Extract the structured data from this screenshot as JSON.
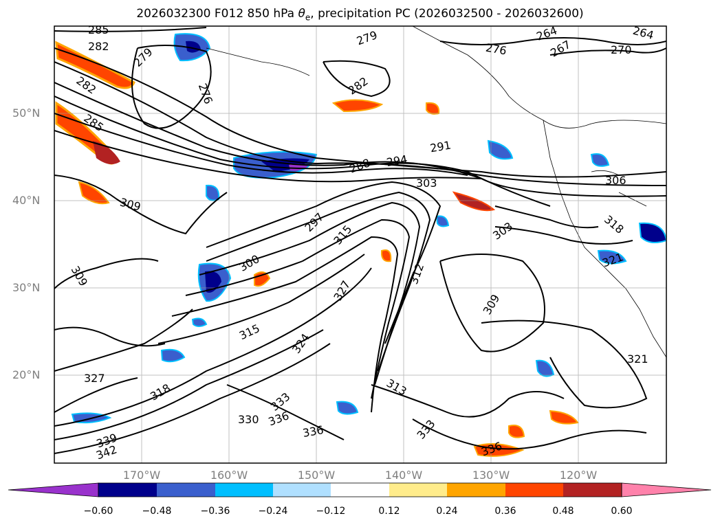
{
  "map": {
    "title_parts": {
      "prefix": "2026032300 F012 850 hPa ",
      "theta": "θ",
      "sub": "e",
      "suffix": ", precipitation PC (2026032500 - 2026032600)"
    },
    "lat_labels": [
      "50°N",
      "40°N",
      "30°N",
      "20°N"
    ],
    "lon_labels": [
      "170°W",
      "160°W",
      "150°W",
      "140°W",
      "130°W",
      "120°W"
    ],
    "contour_labels": [
      "285",
      "282",
      "279",
      "276",
      "282",
      "285",
      "309",
      "279",
      "282",
      "291",
      "288",
      "294",
      "303",
      "303",
      "297",
      "315",
      "300",
      "309",
      "327",
      "309",
      "315",
      "321",
      "330",
      "333",
      "336",
      "339",
      "342",
      "336",
      "327",
      "318",
      "306",
      "318",
      "321",
      "264",
      "267",
      "270",
      "276",
      "264",
      "313",
      "333",
      "336",
      "312",
      "324"
    ],
    "colorbar": {
      "colors": [
        "#9932cc",
        "#00008b",
        "#3a5fcd",
        "#00bfff",
        "#b0e0ff",
        "#ffffff",
        "#ffec8b",
        "#ffa500",
        "#ff4500",
        "#b22222",
        "#ff82ab"
      ],
      "tick_labels": [
        "−0.60",
        "−0.48",
        "−0.36",
        "−0.24",
        "−0.12",
        "0.12",
        "0.24",
        "0.36",
        "0.48",
        "0.60"
      ]
    }
  }
}
